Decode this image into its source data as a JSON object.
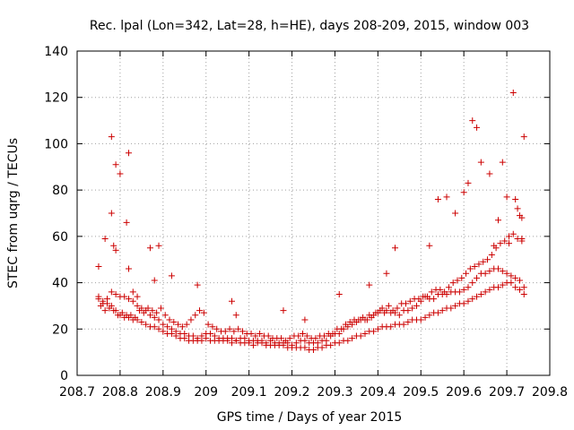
{
  "colors": {
    "series": "#cc0000",
    "axis": "#000000",
    "grid": "#a0a0a0",
    "background": "#ffffff"
  },
  "chart_data": {
    "type": "scatter",
    "title": "Rec. lpal (Lon=342, Lat=28, h=HE), days 208-209, 2015, window 003",
    "xlabel": "GPS time / Days of year 2015",
    "ylabel": "STEC from uqrg / TECUs",
    "xlim": [
      208.7,
      209.8
    ],
    "ylim": [
      0,
      140
    ],
    "xticks": [
      "208.7",
      "208.8",
      "208.9",
      "209",
      "209.1",
      "209.2",
      "209.3",
      "209.4",
      "209.5",
      "209.6",
      "209.7",
      "209.8"
    ],
    "yticks": [
      "0",
      "20",
      "40",
      "60",
      "80",
      "100",
      "120",
      "140"
    ],
    "grid": true,
    "marker": "plus",
    "series": [
      {
        "x": [
          208.75,
          208.76,
          208.77,
          208.78,
          208.79,
          208.8,
          208.81,
          208.82,
          208.83,
          208.84,
          208.85,
          208.86,
          208.87,
          208.88,
          208.89,
          208.9,
          208.91,
          208.92,
          208.93,
          208.94,
          208.95,
          208.96,
          208.97,
          208.98,
          208.99,
          209.0,
          209.01,
          209.02,
          209.03,
          209.04,
          209.05,
          209.06,
          209.07,
          209.08,
          209.09,
          209.1,
          209.11,
          209.12,
          209.13,
          209.14,
          209.15,
          209.16,
          209.17,
          209.18,
          209.19,
          209.2,
          209.21,
          209.22,
          209.23,
          209.24,
          209.25,
          209.26,
          209.27,
          209.28,
          209.29,
          209.3,
          209.31,
          209.32,
          209.33,
          209.34,
          209.35,
          209.36,
          209.37,
          209.38,
          209.39,
          209.4,
          209.41,
          209.42,
          209.43,
          209.44,
          209.45,
          209.46,
          209.47,
          209.48,
          209.49,
          209.5,
          209.51,
          209.52,
          209.53,
          209.54,
          209.55,
          209.56,
          209.57,
          209.58,
          209.59,
          209.6,
          209.61,
          209.62,
          209.63,
          209.64,
          209.65,
          209.66,
          209.67,
          209.68,
          209.69,
          209.7,
          209.71,
          209.72,
          209.73,
          209.74,
          208.75,
          208.76,
          208.77,
          208.78,
          208.79,
          208.8,
          208.81,
          208.82,
          208.83,
          208.84,
          208.85,
          208.86,
          208.87,
          208.88,
          208.89,
          208.9,
          208.91,
          208.92,
          208.93,
          208.94,
          208.95,
          208.96,
          208.97,
          208.98,
          208.99,
          209.0,
          209.01,
          209.02,
          209.03,
          209.04,
          209.05,
          209.06,
          209.07,
          209.08,
          209.09,
          209.1,
          209.11,
          209.12,
          209.13,
          209.14,
          209.15,
          209.16,
          209.17,
          209.18,
          209.19,
          209.2,
          209.21,
          209.22,
          209.23,
          209.24,
          209.25,
          209.26,
          209.27,
          209.28,
          209.29,
          209.3,
          209.31,
          209.32,
          209.33,
          209.34,
          209.35,
          209.36,
          209.37,
          209.38,
          209.39,
          209.4,
          209.41,
          209.42,
          209.43,
          209.44,
          209.45,
          209.46,
          209.47,
          209.48,
          209.49,
          209.5,
          209.51,
          209.52,
          209.53,
          209.54,
          209.55,
          209.56,
          209.57,
          209.58,
          209.59,
          209.6,
          209.61,
          209.62,
          209.63,
          209.64,
          209.65,
          209.66,
          209.67,
          209.68,
          209.69,
          209.7,
          209.71,
          209.72,
          209.73,
          209.74,
          208.755,
          208.765,
          208.775,
          208.785,
          208.795,
          208.805,
          208.815,
          208.825,
          208.835,
          208.845,
          208.855,
          208.865,
          208.875,
          208.885,
          208.895,
          208.905,
          208.915,
          208.925,
          208.935,
          208.945,
          208.955,
          208.965,
          208.975,
          208.985,
          208.995,
          209.005,
          209.015,
          209.025,
          209.035,
          209.045,
          209.055,
          209.065,
          209.075,
          209.085,
          209.095,
          209.105,
          209.115,
          209.125,
          209.135,
          209.145,
          209.155,
          209.165,
          209.175,
          209.185,
          209.195,
          209.205,
          209.215,
          209.225,
          209.235,
          209.245,
          209.255,
          209.265,
          209.275,
          209.285,
          209.295,
          209.305,
          209.315,
          209.325,
          209.335,
          209.345,
          209.355,
          209.365,
          209.375,
          209.385,
          209.395,
          209.405,
          209.415,
          209.425,
          209.435,
          209.445,
          209.455,
          209.465,
          209.475,
          209.485,
          209.495,
          209.505,
          209.515,
          209.525,
          209.535,
          209.545,
          209.555,
          209.565,
          209.575,
          209.585,
          209.595,
          209.605,
          209.615,
          209.625,
          209.635,
          209.645,
          209.655,
          209.665,
          209.675,
          209.685,
          209.695,
          209.705,
          209.715,
          209.725,
          209.735,
          208.75,
          208.765,
          208.78,
          208.79,
          208.8,
          208.815,
          208.82,
          208.78,
          208.785,
          208.79,
          208.82,
          208.83,
          208.84,
          208.87,
          208.88,
          208.89,
          208.92,
          208.98,
          209.06,
          209.07,
          209.18,
          209.23,
          209.31,
          209.38,
          209.42,
          209.44,
          209.52,
          209.54,
          209.56,
          209.58,
          209.6,
          209.61,
          209.62,
          209.63,
          209.64,
          209.66,
          209.67,
          209.68,
          209.69,
          209.7,
          209.705,
          209.72,
          209.725,
          209.73,
          209.735,
          209.74,
          209.715,
          209.735
        ],
        "y": [
          34,
          32,
          31,
          30,
          28,
          26,
          25,
          25,
          24,
          24,
          23,
          22,
          21,
          21,
          20,
          19,
          18,
          18,
          17,
          16,
          16,
          15,
          15,
          15,
          15,
          16,
          15,
          15,
          15,
          15,
          15,
          14,
          15,
          14,
          14,
          14,
          13,
          14,
          14,
          13,
          13,
          13,
          13,
          13,
          12,
          12,
          12,
          12,
          12,
          11,
          11,
          12,
          12,
          13,
          13,
          14,
          14,
          15,
          15,
          16,
          17,
          17,
          18,
          19,
          19,
          20,
          21,
          21,
          21,
          22,
          22,
          22,
          23,
          24,
          24,
          24,
          25,
          26,
          27,
          27,
          28,
          29,
          29,
          30,
          31,
          31,
          32,
          33,
          34,
          35,
          36,
          37,
          38,
          38,
          39,
          40,
          40,
          38,
          37,
          35,
          33,
          31,
          33,
          36,
          35,
          34,
          34,
          33,
          32,
          30,
          29,
          28,
          26,
          25,
          24,
          22,
          21,
          20,
          19,
          18,
          18,
          17,
          17,
          16,
          17,
          18,
          18,
          17,
          16,
          16,
          16,
          16,
          15,
          16,
          16,
          15,
          15,
          15,
          15,
          14,
          15,
          14,
          14,
          14,
          14,
          13,
          14,
          15,
          15,
          14,
          14,
          14,
          15,
          15,
          17,
          18,
          18,
          20,
          21,
          22,
          23,
          24,
          24,
          26,
          26,
          27,
          29,
          28,
          27,
          27,
          26,
          28,
          28,
          29,
          30,
          32,
          34,
          33,
          33,
          35,
          35,
          35,
          36,
          36,
          36,
          37,
          38,
          40,
          42,
          44,
          44,
          45,
          46,
          46,
          45,
          44,
          43,
          42,
          41,
          38,
          30,
          28,
          29,
          28,
          26,
          27,
          26,
          26,
          25,
          28,
          27,
          29,
          28,
          27,
          29,
          26,
          24,
          23,
          22,
          21,
          22,
          24,
          26,
          28,
          27,
          22,
          21,
          20,
          19,
          19,
          20,
          19,
          20,
          19,
          18,
          18,
          17,
          18,
          17,
          17,
          16,
          16,
          16,
          15,
          16,
          17,
          17,
          18,
          17,
          16,
          16,
          17,
          17,
          18,
          18,
          20,
          20,
          22,
          23,
          24,
          24,
          25,
          24,
          25,
          27,
          28,
          27,
          30,
          28,
          29,
          31,
          31,
          32,
          33,
          33,
          34,
          34,
          36,
          37,
          37,
          36,
          38,
          40,
          41,
          42,
          44,
          46,
          47,
          48,
          49,
          50,
          52,
          55,
          57,
          58,
          60,
          61,
          59,
          58,
          47,
          59,
          103,
          91,
          87,
          66,
          96,
          70,
          56,
          54,
          46,
          36,
          34,
          55,
          41,
          56,
          43,
          39,
          32,
          26,
          28,
          24,
          35,
          39,
          44,
          55,
          56,
          76,
          77,
          70,
          79,
          83,
          110,
          107,
          92,
          87,
          56,
          67,
          92,
          77,
          57,
          76,
          72,
          69,
          59,
          103,
          122,
          68
        ],
        "name": ""
      }
    ]
  }
}
